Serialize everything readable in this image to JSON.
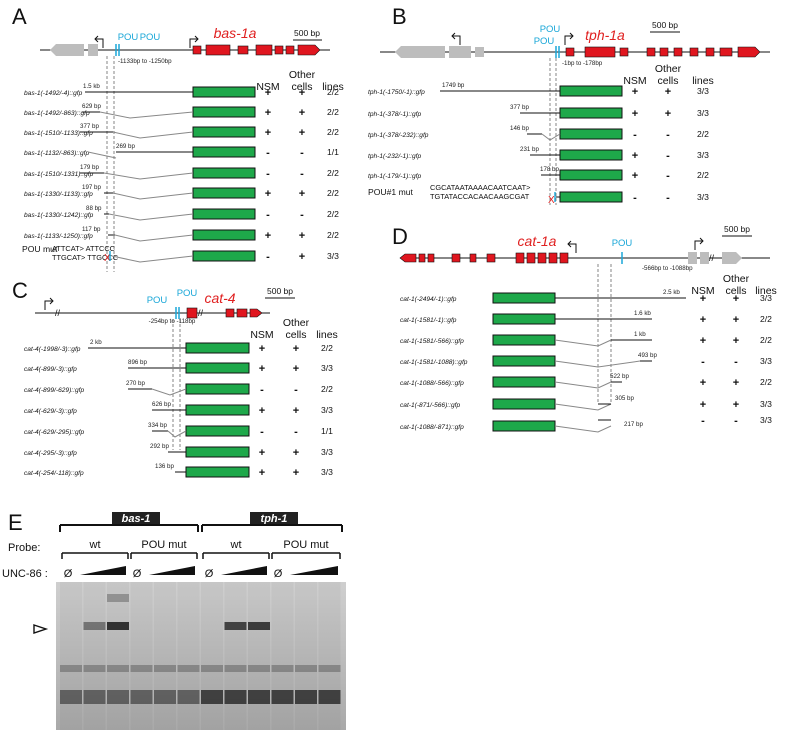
{
  "colors": {
    "gfp": "#1ea84a",
    "exon_red": "#e0161f",
    "pou_blue": "#1aa7d8",
    "gray_exon": "#bdbdbd"
  },
  "panelA": {
    "letter": "A",
    "gene": "bas-1a",
    "pou1": "POU",
    "pou2": "POU",
    "scale": "500 bp",
    "region": "-1133bp to -1250bp",
    "headers": {
      "nsm": "NSM",
      "other1": "Other",
      "other2": "cells",
      "lines": "lines"
    },
    "mut_label": "POU mut",
    "mut_seq1": "ATTCAT> ATTCCC",
    "mut_seq2": "TTGCAT> TTGCCC",
    "rows": [
      {
        "name": "bas-1(-1492/-4)::gfp",
        "size": "1.5 kb",
        "nsm": "+",
        "other": "+",
        "lines": "2/2"
      },
      {
        "name": "bas-1(-1492/-863)::gfp",
        "size": "629 bp",
        "nsm": "+",
        "other": "+",
        "lines": "2/2"
      },
      {
        "name": "bas-1(-1510/-1133)::gfp",
        "size": "377 bp",
        "nsm": "+",
        "other": "+",
        "lines": "2/2"
      },
      {
        "name": "bas-1(-1132/-863)::gfp",
        "size": "269 bp",
        "nsm": "-",
        "other": "-",
        "lines": "1/1"
      },
      {
        "name": "bas-1(-1510/-1331)::gfp",
        "size": "179 bp",
        "nsm": "-",
        "other": "-",
        "lines": "2/2"
      },
      {
        "name": "bas-1(-1330/-1133)::gfp",
        "size": "197 bp",
        "nsm": "+",
        "other": "+",
        "lines": "2/2"
      },
      {
        "name": "bas-1(-1330/-1242)::gfp",
        "size": "88 bp",
        "nsm": "-",
        "other": "-",
        "lines": "2/2"
      },
      {
        "name": "bas-1(-1133/-1250)::gfp",
        "size": "117 bp",
        "nsm": "+",
        "other": "+",
        "lines": "2/2"
      },
      {
        "name": "",
        "size": "",
        "nsm": "-",
        "other": "+",
        "lines": "3/3"
      }
    ]
  },
  "panelB": {
    "letter": "B",
    "gene": "tph-1a",
    "pou1": "POU",
    "pou2": "POU",
    "scale": "500 bp",
    "region": "-1bp to -178bp",
    "headers": {
      "nsm": "NSM",
      "other1": "Other",
      "other2": "cells",
      "lines": "lines"
    },
    "mut_label": "POU#1 mut",
    "mut_seq1": "CGCATAATAAAACAATCAAT>",
    "mut_seq2": "TGTATACCACAACAAGCGAT",
    "rows": [
      {
        "name": "tph-1(-1750/-1)::gfp",
        "size": "1749 bp",
        "nsm": "+",
        "other": "+",
        "lines": "3/3"
      },
      {
        "name": "tph-1(-378/-1)::gfp",
        "size": "377 bp",
        "nsm": "+",
        "other": "+",
        "lines": "3/3"
      },
      {
        "name": "tph-1(-378/-232)::gfp",
        "size": "146 bp",
        "nsm": "-",
        "other": "-",
        "lines": "2/2"
      },
      {
        "name": "tph-1(-232/-1)::gfp",
        "size": "231 bp",
        "nsm": "+",
        "other": "-",
        "lines": "3/3"
      },
      {
        "name": "tph-1(-179/-1)::gfp",
        "size": "178 bp",
        "nsm": "+",
        "other": "-",
        "lines": "2/2"
      },
      {
        "name": "",
        "size": "",
        "nsm": "-",
        "other": "-",
        "lines": "3/3"
      }
    ]
  },
  "panelC": {
    "letter": "C",
    "gene": "cat-4",
    "pou1": "POU",
    "pou2": "POU",
    "scale": "500 bp",
    "region": "-254bp to -118bp",
    "headers": {
      "nsm": "NSM",
      "other1": "Other",
      "other2": "cells",
      "lines": "lines"
    },
    "rows": [
      {
        "name": "cat-4(-1998/-3)::gfp",
        "size": "2 kb",
        "nsm": "+",
        "other": "+",
        "lines": "2/2"
      },
      {
        "name": "cat-4(-899/-3)::gfp",
        "size": "896 bp",
        "nsm": "+",
        "other": "+",
        "lines": "3/3"
      },
      {
        "name": "cat-4(-899/-629)::gfp",
        "size": "270 bp",
        "nsm": "-",
        "other": "-",
        "lines": "2/2"
      },
      {
        "name": "cat-4(-629/-3)::gfp",
        "size": "626 bp",
        "nsm": "+",
        "other": "+",
        "lines": "3/3"
      },
      {
        "name": "cat-4(-629/-295)::gfp",
        "size": "334 bp",
        "nsm": "-",
        "other": "-",
        "lines": "1/1"
      },
      {
        "name": "cat-4(-295/-3)::gfp",
        "size": "292 bp",
        "nsm": "+",
        "other": "+",
        "lines": "3/3"
      },
      {
        "name": "cat-4(-254/-118)::gfp",
        "size": "136 bp",
        "nsm": "+",
        "other": "+",
        "lines": "3/3"
      }
    ]
  },
  "panelD": {
    "letter": "D",
    "gene": "cat-1a",
    "pou1": "POU",
    "scale": "500 bp",
    "region": "-566bp to -1088bp",
    "headers": {
      "nsm": "NSM",
      "other1": "Other",
      "other2": "cells",
      "lines": "lines"
    },
    "rows": [
      {
        "name": "cat-1(-2494/-1)::gfp",
        "size": "2.5 kb",
        "nsm": "+",
        "other": "+",
        "lines": "3/3"
      },
      {
        "name": "cat-1(-1581/-1)::gfp",
        "size": "1.6 kb",
        "nsm": "+",
        "other": "+",
        "lines": "2/2"
      },
      {
        "name": "cat-1(-1581/-566)::gfp",
        "size": "1 kb",
        "nsm": "+",
        "other": "+",
        "lines": "2/2"
      },
      {
        "name": "cat-1(-1581/-1088)::gfp",
        "size": "493 bp",
        "nsm": "-",
        "other": "-",
        "lines": "3/3"
      },
      {
        "name": "cat-1(-1088/-566)::gfp",
        "size": "522 bp",
        "nsm": "+",
        "other": "+",
        "lines": "2/2"
      },
      {
        "name": "cat-1(-871/-566)::gfp",
        "size": "305 bp",
        "nsm": "+",
        "other": "+",
        "lines": "3/3"
      },
      {
        "name": "cat-1(-1088/-871)::gfp",
        "size": "217 bp",
        "nsm": "-",
        "other": "-",
        "lines": "3/3"
      }
    ]
  },
  "panelE": {
    "letter": "E",
    "gene1": "bas-1",
    "gene2": "tph-1",
    "probe_label": "Probe:",
    "unc_label": "UNC-86 :",
    "probes": [
      "wt",
      "POU mut",
      "wt",
      "POU mut"
    ],
    "empty": "Ø"
  }
}
